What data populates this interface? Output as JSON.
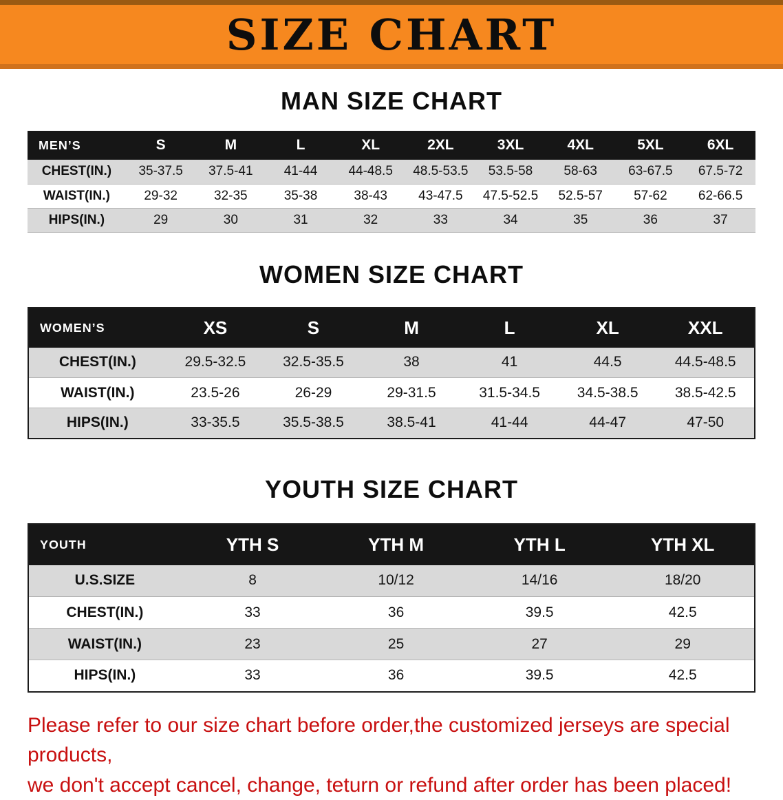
{
  "banner": {
    "title": "SIZE CHART",
    "bg_color": "#f6881f",
    "text_color": "#0d0d0d"
  },
  "tables": [
    {
      "id": "men",
      "heading": "MAN SIZE CHART",
      "header_label": "MEN’S",
      "columns": [
        "S",
        "M",
        "L",
        "XL",
        "2XL",
        "3XL",
        "4XL",
        "5XL",
        "6XL"
      ],
      "rows": [
        {
          "label": "CHEST(IN.)",
          "values": [
            "35-37.5",
            "37.5-41",
            "41-44",
            "44-48.5",
            "48.5-53.5",
            "53.5-58",
            "58-63",
            "63-67.5",
            "67.5-72"
          ]
        },
        {
          "label": "WAIST(IN.)",
          "values": [
            "29-32",
            "32-35",
            "35-38",
            "38-43",
            "43-47.5",
            "47.5-52.5",
            "52.5-57",
            "57-62",
            "62-66.5"
          ]
        },
        {
          "label": "HIPS(IN.)",
          "values": [
            "29",
            "30",
            "31",
            "32",
            "33",
            "34",
            "35",
            "36",
            "37"
          ]
        }
      ]
    },
    {
      "id": "women",
      "heading": "WOMEN SIZE CHART",
      "header_label": "WOMEN’S",
      "columns": [
        "XS",
        "S",
        "M",
        "L",
        "XL",
        "XXL"
      ],
      "rows": [
        {
          "label": "CHEST(IN.)",
          "values": [
            "29.5-32.5",
            "32.5-35.5",
            "38",
            "41",
            "44.5",
            "44.5-48.5"
          ]
        },
        {
          "label": "WAIST(IN.)",
          "values": [
            "23.5-26",
            "26-29",
            "29-31.5",
            "31.5-34.5",
            "34.5-38.5",
            "38.5-42.5"
          ]
        },
        {
          "label": "HIPS(IN.)",
          "values": [
            "33-35.5",
            "35.5-38.5",
            "38.5-41",
            "41-44",
            "44-47",
            "47-50"
          ]
        }
      ]
    },
    {
      "id": "youth",
      "heading": "YOUTH SIZE CHART",
      "header_label": "YOUTH",
      "columns": [
        "YTH S",
        "YTH M",
        "YTH L",
        "YTH XL"
      ],
      "rows": [
        {
          "label": "U.S.SIZE",
          "values": [
            "8",
            "10/12",
            "14/16",
            "18/20"
          ]
        },
        {
          "label": "CHEST(IN.)",
          "values": [
            "33",
            "36",
            "39.5",
            "42.5"
          ]
        },
        {
          "label": "WAIST(IN.)",
          "values": [
            "23",
            "25",
            "27",
            "29"
          ]
        },
        {
          "label": "HIPS(IN.)",
          "values": [
            "33",
            "36",
            "39.5",
            "42.5"
          ]
        }
      ]
    }
  ],
  "footer": {
    "line1": "Please refer to our size chart before order,the customized jerseys are special products,",
    "line2": "we don't accept cancel, change, teturn or refund after order has been placed!",
    "text_color": "#c81010"
  }
}
